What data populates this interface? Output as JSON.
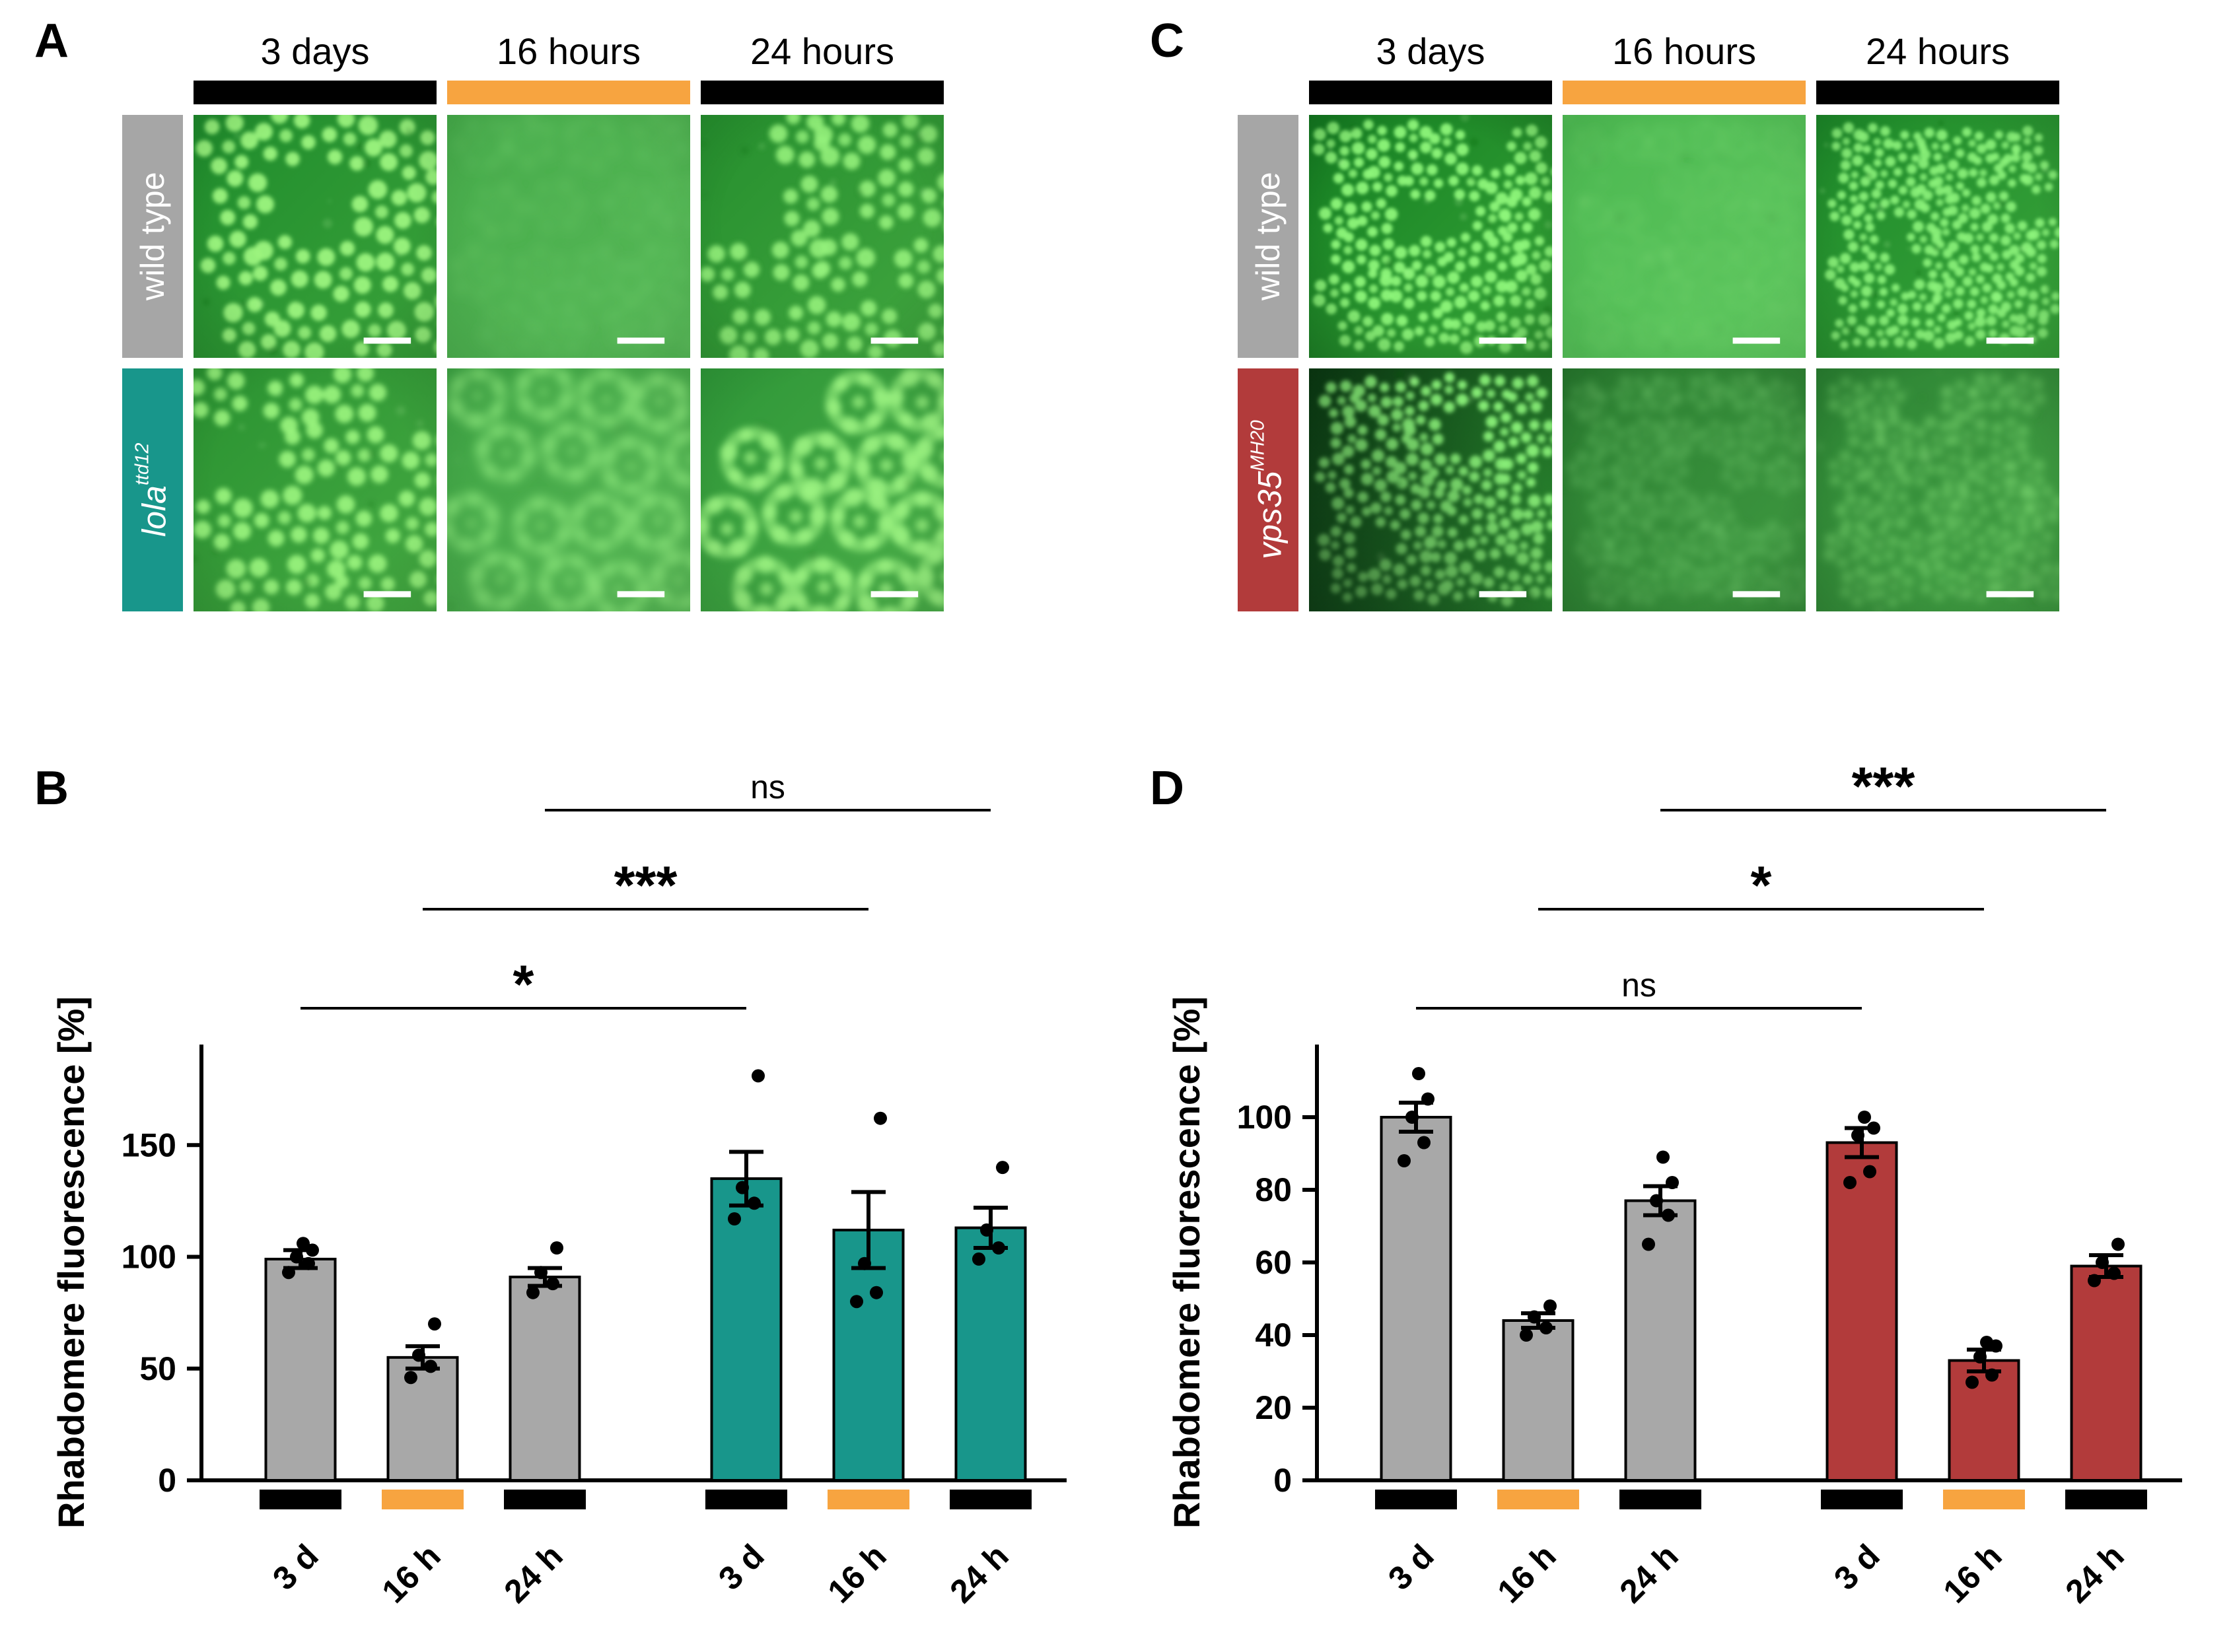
{
  "panels": {
    "A": {
      "letter": "A",
      "columns": [
        {
          "label": "3 days",
          "bar_color": "#000000"
        },
        {
          "label": "16 hours",
          "bar_color": "#F7A440"
        },
        {
          "label": "24 hours",
          "bar_color": "#000000"
        }
      ],
      "rows": [
        {
          "label": "wild type",
          "sup": "",
          "italic": false,
          "label_bg": "#a6a6a6",
          "images": [
            {
              "seed": 11,
              "bg": [
                "#1f8c2c",
                "#3aa23a"
              ],
              "dot": "#9cf47e",
              "cols": 4,
              "rows": 4,
              "cluster_r": 34,
              "dot_r": 12,
              "blur": 3.2,
              "dot_opacity": 0.95,
              "ring": false,
              "noise": 14,
              "vignette": 0.18,
              "dark_corner": 0
            },
            {
              "seed": 12,
              "bg": [
                "#46ab4a",
                "#57b957"
              ],
              "dot": "#7ed97a",
              "cols": 4,
              "rows": 4,
              "cluster_r": 32,
              "dot_r": 11,
              "blur": 9,
              "dot_opacity": 0.22,
              "ring": false,
              "noise": 30,
              "vignette": 0.12,
              "dark_corner": 0
            },
            {
              "seed": 13,
              "bg": [
                "#268f2e",
                "#41a63f"
              ],
              "dot": "#95f17c",
              "cols": 4,
              "rows": 4,
              "cluster_r": 33,
              "dot_r": 12,
              "blur": 3.6,
              "dot_opacity": 0.9,
              "ring": false,
              "noise": 14,
              "vignette": 0.15,
              "dark_corner": 0
            }
          ]
        },
        {
          "label": "lola",
          "sup": "ttd12",
          "italic": true,
          "label_bg": "#18968b",
          "images": [
            {
              "seed": 14,
              "bg": [
                "#2a9231",
                "#45aa42"
              ],
              "dot": "#9af47e",
              "cols": 4,
              "rows": 4,
              "cluster_r": 34,
              "dot_r": 12,
              "blur": 4,
              "dot_opacity": 0.92,
              "ring": false,
              "noise": 14,
              "vignette": 0.15,
              "dark_corner": 0
            },
            {
              "seed": 15,
              "bg": [
                "#3da243",
                "#55b553"
              ],
              "dot": "#8fe97e",
              "cols": 4,
              "rows": 4,
              "cluster_r": 34,
              "dot_r": 11,
              "blur": 7.5,
              "dot_opacity": 0.55,
              "ring": true,
              "noise": 22,
              "vignette": 0.12,
              "dark_corner": 0
            },
            {
              "seed": 16,
              "bg": [
                "#2f9738",
                "#4aad48"
              ],
              "dot": "#9cf482",
              "cols": 4,
              "rows": 4,
              "cluster_r": 36,
              "dot_r": 12,
              "blur": 5,
              "dot_opacity": 0.8,
              "ring": true,
              "noise": 18,
              "vignette": 0.14,
              "dark_corner": 0
            }
          ]
        }
      ]
    },
    "C": {
      "letter": "C",
      "columns": [
        {
          "label": "3 days",
          "bar_color": "#000000"
        },
        {
          "label": "16 hours",
          "bar_color": "#F7A440"
        },
        {
          "label": "24 hours",
          "bar_color": "#000000"
        }
      ],
      "rows": [
        {
          "label": "wild type",
          "sup": "",
          "italic": false,
          "label_bg": "#a6a6a6",
          "images": [
            {
              "seed": 21,
              "bg": [
                "#157f22",
                "#36a437"
              ],
              "dot": "#8df57a",
              "cols": 6,
              "rows": 6,
              "cluster_r": 22,
              "dot_r": 8,
              "blur": 2.6,
              "dot_opacity": 0.95,
              "ring": false,
              "noise": 20,
              "vignette": 0.3,
              "dark_corner": 0
            },
            {
              "seed": 22,
              "bg": [
                "#4cb851",
                "#5ec75e"
              ],
              "dot": "#86e07c",
              "cols": 6,
              "rows": 6,
              "cluster_r": 21,
              "dot_r": 8,
              "blur": 7,
              "dot_opacity": 0.2,
              "ring": false,
              "noise": 30,
              "vignette": 0.1,
              "dark_corner": 0
            },
            {
              "seed": 23,
              "bg": [
                "#1d8929",
                "#3aa53b"
              ],
              "dot": "#8df37b",
              "cols": 7,
              "rows": 7,
              "cluster_r": 19,
              "dot_r": 7,
              "blur": 2.6,
              "dot_opacity": 0.9,
              "ring": false,
              "noise": 20,
              "vignette": 0.2,
              "dark_corner": 0
            }
          ]
        },
        {
          "label": "vps35",
          "sup": "MH20",
          "italic": true,
          "label_bg": "#b23b3b",
          "images": [
            {
              "seed": 24,
              "bg": [
                "#0b3a12",
                "#2f9434"
              ],
              "dot": "#8df57c",
              "cols": 6,
              "rows": 6,
              "cluster_r": 22,
              "dot_r": 8,
              "blur": 3,
              "dot_opacity": 0.92,
              "ring": false,
              "noise": 16,
              "vignette": 0.1,
              "dark_corner": 0.55
            },
            {
              "seed": 25,
              "bg": [
                "#2a7d30",
                "#3f9a41"
              ],
              "dot": "#7fd878",
              "cols": 6,
              "rows": 6,
              "cluster_r": 21,
              "dot_r": 8,
              "blur": 6.5,
              "dot_opacity": 0.35,
              "ring": false,
              "noise": 40,
              "vignette": 0.25,
              "dark_corner": 0
            },
            {
              "seed": 26,
              "bg": [
                "#2c8333",
                "#44a245"
              ],
              "dot": "#8ae57d",
              "cols": 6,
              "rows": 6,
              "cluster_r": 22,
              "dot_r": 8,
              "blur": 6,
              "dot_opacity": 0.45,
              "ring": false,
              "noise": 36,
              "vignette": 0.22,
              "dark_corner": 0
            }
          ]
        }
      ]
    }
  },
  "chart_data": [
    {
      "panel_letter": "B",
      "type": "bar",
      "ylabel": "Rhabdomere fluorescence [%]",
      "ylim": [
        0,
        195
      ],
      "yticks": [
        0,
        50,
        100,
        150
      ],
      "categories": [
        "3 d",
        "16 h",
        "24 h",
        "3 d",
        "16 h",
        "24 h"
      ],
      "bar_colors": [
        "#a8a8a8",
        "#a8a8a8",
        "#a8a8a8",
        "#18968b",
        "#18968b",
        "#18968b"
      ],
      "values": [
        99,
        55,
        91,
        135,
        112,
        113
      ],
      "errors": [
        4,
        5,
        4,
        12,
        17,
        9
      ],
      "points": [
        [
          93,
          97,
          100,
          103,
          106
        ],
        [
          46,
          51,
          56,
          70
        ],
        [
          84,
          88,
          93,
          104
        ],
        [
          117,
          124,
          131,
          181
        ],
        [
          80,
          84,
          97,
          162
        ],
        [
          99,
          104,
          112,
          140
        ]
      ],
      "category_marker_colors": [
        "#000000",
        "#F7A440",
        "#000000",
        "#000000",
        "#F7A440",
        "#000000"
      ],
      "significance": [
        {
          "from": 0,
          "to": 3,
          "label": "*",
          "level": 0
        },
        {
          "from": 1,
          "to": 4,
          "label": "***",
          "level": 1
        },
        {
          "from": 2,
          "to": 5,
          "label": "ns",
          "level": 2
        }
      ]
    },
    {
      "panel_letter": "D",
      "type": "bar",
      "ylabel": "Rhabdomere fluorescence [%]",
      "ylim": [
        0,
        120
      ],
      "yticks": [
        0,
        20,
        40,
        60,
        80,
        100
      ],
      "categories": [
        "3 d",
        "16 h",
        "24 h",
        "3 d",
        "16 h",
        "24 h"
      ],
      "bar_colors": [
        "#a8a8a8",
        "#a8a8a8",
        "#a8a8a8",
        "#b23b3b",
        "#b23b3b",
        "#b23b3b"
      ],
      "values": [
        100,
        44,
        77,
        93,
        33,
        59
      ],
      "errors": [
        4,
        2,
        4,
        4,
        3,
        3
      ],
      "points": [
        [
          88,
          93,
          100,
          105,
          112
        ],
        [
          40,
          42,
          45,
          48
        ],
        [
          65,
          73,
          77,
          82,
          89
        ],
        [
          82,
          85,
          95,
          97,
          100
        ],
        [
          27,
          29,
          34,
          37,
          38
        ],
        [
          55,
          57,
          60,
          65
        ]
      ],
      "category_marker_colors": [
        "#000000",
        "#F7A440",
        "#000000",
        "#000000",
        "#F7A440",
        "#000000"
      ],
      "significance": [
        {
          "from": 0,
          "to": 3,
          "label": "ns",
          "level": 0
        },
        {
          "from": 1,
          "to": 4,
          "label": "*",
          "level": 1
        },
        {
          "from": 2,
          "to": 5,
          "label": "***",
          "level": 2
        }
      ]
    }
  ],
  "colors": {
    "orange": "#F7A440",
    "black": "#000000",
    "gray_bar": "#a8a8a8",
    "teal": "#18968b",
    "red": "#b23b3b",
    "scale_bar": "#ffffff"
  }
}
